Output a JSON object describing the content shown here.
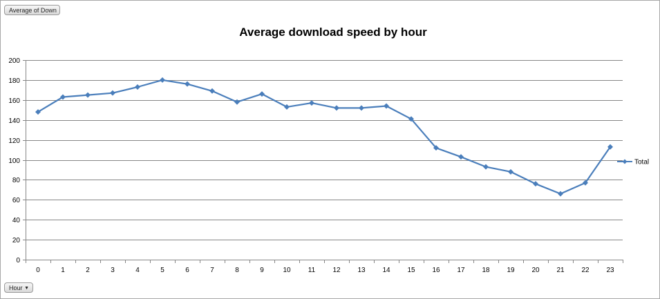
{
  "pivot": {
    "value_field": "Average of Down",
    "axis_field": "Hour",
    "axis_dropdown_glyph": "▼"
  },
  "colors": {
    "series": "#4a7ebb",
    "grid": "#868686",
    "axis": "#868686"
  },
  "chart_data": {
    "type": "line",
    "title": "Average download speed by hour",
    "xlabel": "",
    "ylabel": "",
    "categories": [
      "0",
      "1",
      "2",
      "3",
      "4",
      "5",
      "6",
      "7",
      "8",
      "9",
      "10",
      "11",
      "12",
      "13",
      "14",
      "15",
      "16",
      "17",
      "18",
      "19",
      "20",
      "21",
      "22",
      "23"
    ],
    "series": [
      {
        "name": "Total",
        "marker": "diamond",
        "values": [
          148,
          163,
          165,
          167,
          173,
          180,
          176,
          169,
          158,
          166,
          153,
          157,
          152,
          152,
          154,
          141,
          112,
          103,
          93,
          88,
          76,
          66,
          77,
          113
        ]
      }
    ],
    "ylim": [
      0,
      200
    ],
    "yticks": [
      0,
      20,
      40,
      60,
      80,
      100,
      120,
      140,
      160,
      180,
      200
    ],
    "grid": true,
    "legend_position": "right"
  }
}
